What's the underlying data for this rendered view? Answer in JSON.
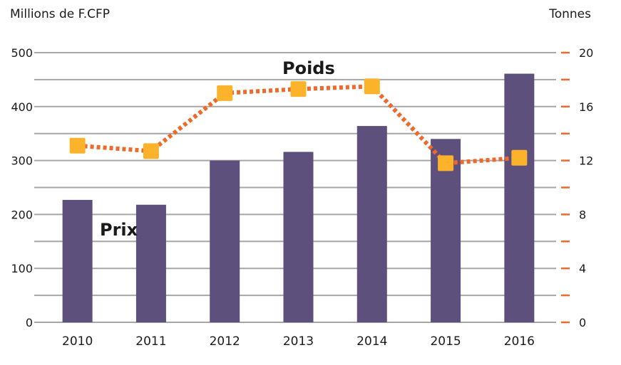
{
  "chart_data": {
    "type": "bar+line",
    "categories": [
      "2010",
      "2011",
      "2012",
      "2013",
      "2014",
      "2015",
      "2016"
    ],
    "series": [
      {
        "name": "Prix",
        "type": "bar",
        "axis": "left",
        "values": [
          227,
          218,
          300,
          316,
          364,
          340,
          461
        ],
        "color": "#5e507c"
      },
      {
        "name": "Poids",
        "type": "line",
        "axis": "right",
        "values": [
          13.1,
          12.7,
          17.0,
          17.3,
          17.5,
          11.8,
          12.2
        ],
        "line_color": "#ee6a2b",
        "marker_color": "#fbb32b"
      }
    ],
    "y_left": {
      "label": "Millions de F.CFP",
      "ylim": [
        0,
        500
      ],
      "ticks": [
        "0",
        "100",
        "200",
        "300",
        "400",
        "500"
      ],
      "tick_values": [
        0,
        100,
        200,
        300,
        400,
        500
      ]
    },
    "y_right": {
      "label": "Tonnes",
      "ylim": [
        0,
        20
      ],
      "ticks": [
        "0",
        "4",
        "8",
        "12",
        "16",
        "20"
      ],
      "tick_values": [
        0,
        4,
        8,
        12,
        16,
        20
      ],
      "color": "#ee6a2b"
    },
    "annotations": {
      "bars": "Prix",
      "line": "Poids"
    },
    "grid": true,
    "gridline_color": "#a6a6a6"
  }
}
